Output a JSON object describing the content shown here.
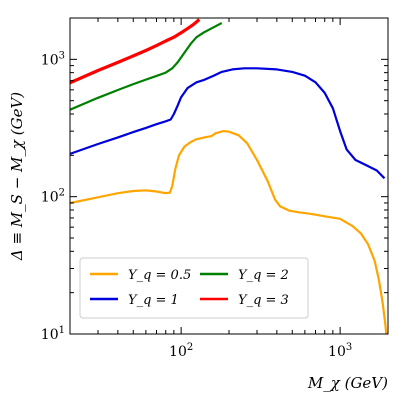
{
  "chart_data": {
    "type": "line",
    "title": "",
    "xlabel": "M_χ (GeV)",
    "ylabel": "Δ ≡ M_S − M_χ (GeV)",
    "xscale": "log",
    "yscale": "log",
    "xlim": [
      20,
      2000
    ],
    "ylim": [
      10,
      2000
    ],
    "x_ticks": [
      {
        "value": 100,
        "base": "10",
        "exp": "2"
      },
      {
        "value": 1000,
        "base": "10",
        "exp": "3"
      }
    ],
    "y_ticks": [
      {
        "value": 10,
        "base": "10",
        "exp": "1"
      },
      {
        "value": 100,
        "base": "10",
        "exp": "2"
      },
      {
        "value": 1000,
        "base": "10",
        "exp": "3"
      }
    ],
    "grid": false,
    "legend_position": "bottom-left",
    "series": [
      {
        "name": "Y_q = 0.5",
        "color": "#FFA500",
        "points": [
          [
            20,
            90
          ],
          [
            30,
            99
          ],
          [
            40,
            106
          ],
          [
            50,
            110
          ],
          [
            60,
            111
          ],
          [
            70,
            109
          ],
          [
            80,
            106
          ],
          [
            85,
            107
          ],
          [
            88,
            120
          ],
          [
            92,
            160
          ],
          [
            97,
            200
          ],
          [
            105,
            232
          ],
          [
            115,
            250
          ],
          [
            125,
            262
          ],
          [
            140,
            270
          ],
          [
            155,
            276
          ],
          [
            165,
            290
          ],
          [
            185,
            300
          ],
          [
            200,
            297
          ],
          [
            230,
            280
          ],
          [
            260,
            245
          ],
          [
            300,
            185
          ],
          [
            350,
            130
          ],
          [
            390,
            95
          ],
          [
            420,
            85
          ],
          [
            480,
            79
          ],
          [
            550,
            77
          ],
          [
            650,
            75
          ],
          [
            800,
            72
          ],
          [
            1000,
            69
          ],
          [
            1200,
            61
          ],
          [
            1350,
            54
          ],
          [
            1500,
            45
          ],
          [
            1650,
            34
          ],
          [
            1750,
            25
          ],
          [
            1850,
            17
          ],
          [
            1920,
            12
          ],
          [
            1950,
            10
          ]
        ]
      },
      {
        "name": "Y_q = 1",
        "color": "#0000DD",
        "points": [
          [
            20,
            205
          ],
          [
            30,
            242
          ],
          [
            40,
            270
          ],
          [
            50,
            295
          ],
          [
            60,
            317
          ],
          [
            70,
            337
          ],
          [
            80,
            354
          ],
          [
            86,
            365
          ],
          [
            90,
            400
          ],
          [
            95,
            460
          ],
          [
            100,
            530
          ],
          [
            110,
            620
          ],
          [
            125,
            680
          ],
          [
            140,
            710
          ],
          [
            160,
            760
          ],
          [
            180,
            810
          ],
          [
            210,
            845
          ],
          [
            250,
            860
          ],
          [
            300,
            860
          ],
          [
            400,
            845
          ],
          [
            500,
            810
          ],
          [
            600,
            760
          ],
          [
            700,
            680
          ],
          [
            800,
            570
          ],
          [
            900,
            440
          ],
          [
            1000,
            300
          ],
          [
            1100,
            220
          ],
          [
            1250,
            185
          ],
          [
            1450,
            170
          ],
          [
            1700,
            155
          ],
          [
            1900,
            136
          ]
        ]
      },
      {
        "name": "Y_q = 2",
        "color": "#008000",
        "points": [
          [
            20,
            430
          ],
          [
            30,
            525
          ],
          [
            40,
            598
          ],
          [
            50,
            660
          ],
          [
            60,
            712
          ],
          [
            70,
            758
          ],
          [
            80,
            800
          ],
          [
            88,
            860
          ],
          [
            95,
            950
          ],
          [
            105,
            1120
          ],
          [
            115,
            1300
          ],
          [
            125,
            1450
          ],
          [
            140,
            1580
          ],
          [
            160,
            1710
          ],
          [
            180,
            1840
          ]
        ]
      },
      {
        "name": "Y_q = 3",
        "color": "#FF0000",
        "points": [
          [
            20,
            675
          ],
          [
            30,
            830
          ],
          [
            40,
            950
          ],
          [
            50,
            1060
          ],
          [
            60,
            1160
          ],
          [
            70,
            1260
          ],
          [
            80,
            1360
          ],
          [
            90,
            1450
          ],
          [
            100,
            1560
          ],
          [
            110,
            1680
          ],
          [
            120,
            1800
          ],
          [
            130,
            1950
          ]
        ]
      }
    ]
  }
}
